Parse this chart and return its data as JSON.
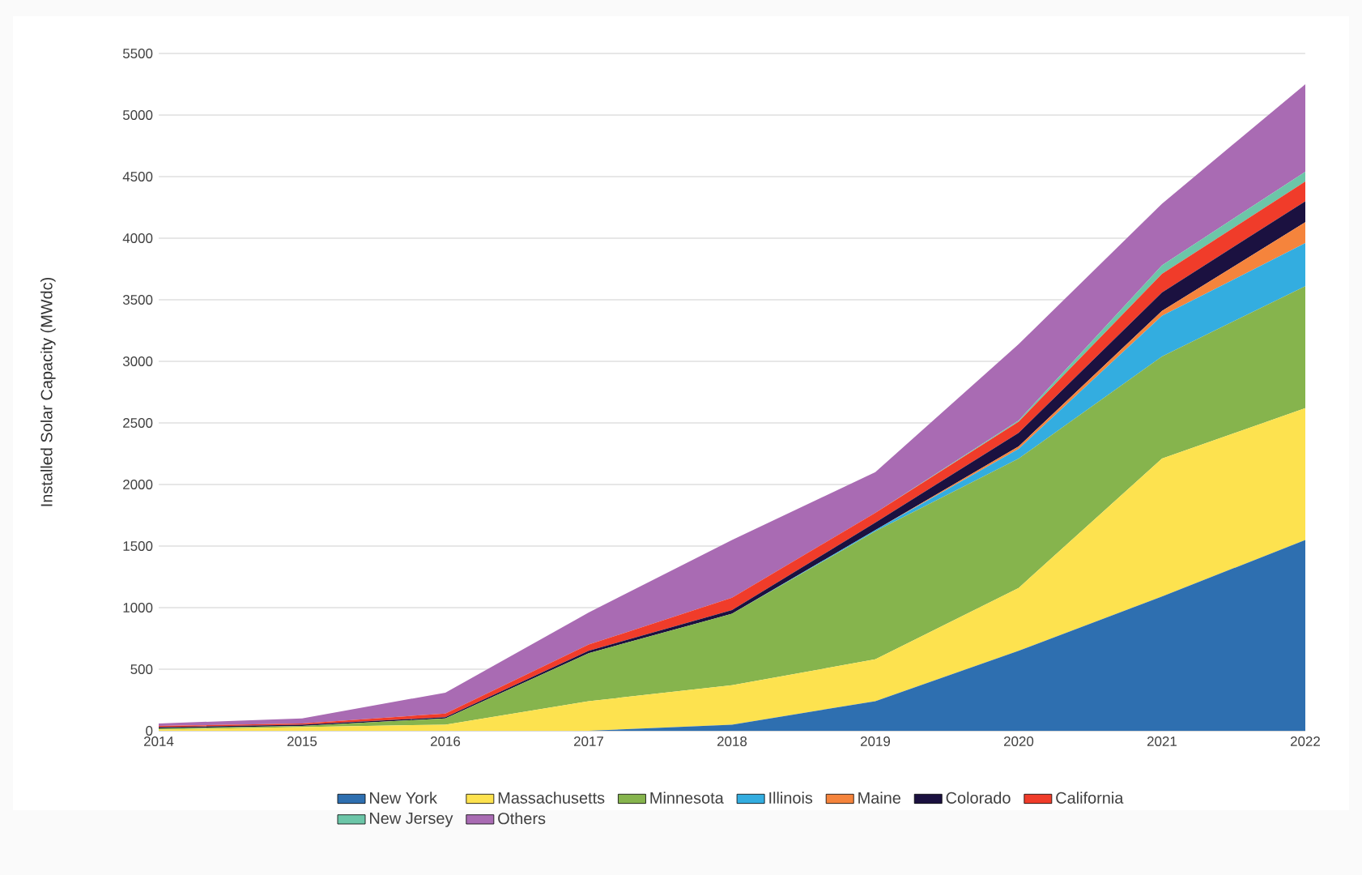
{
  "chart_data": {
    "type": "area",
    "stacked": true,
    "ylabel": "Installed Solar Capacity (MWdc)",
    "x": [
      2014,
      2015,
      2016,
      2017,
      2018,
      2019,
      2020,
      2021,
      2022
    ],
    "xlim": [
      2014,
      2022
    ],
    "xticks": [
      2014,
      2015,
      2016,
      2017,
      2018,
      2019,
      2020,
      2021,
      2022
    ],
    "ylim": [
      0,
      5500
    ],
    "yticks": [
      0,
      500,
      1000,
      1500,
      2000,
      2500,
      3000,
      3500,
      4000,
      4500,
      5000,
      5500
    ],
    "grid": "y",
    "legend": "bottom",
    "series": [
      {
        "name": "New York",
        "color": "#2e6fb0",
        "values": [
          0,
          0,
          0,
          0,
          50,
          240,
          650,
          1090,
          1550
        ]
      },
      {
        "name": "Massachusetts",
        "color": "#fde24f",
        "values": [
          10,
          30,
          50,
          240,
          320,
          340,
          510,
          1120,
          1070
        ]
      },
      {
        "name": "Minnesota",
        "color": "#86b44d",
        "values": [
          10,
          10,
          50,
          390,
          580,
          1040,
          1050,
          830,
          990
        ]
      },
      {
        "name": "Illinois",
        "color": "#33ade0",
        "values": [
          0,
          0,
          0,
          0,
          0,
          10,
          80,
          330,
          350
        ]
      },
      {
        "name": "Maine",
        "color": "#f5843c",
        "values": [
          0,
          0,
          0,
          0,
          0,
          0,
          20,
          40,
          170
        ]
      },
      {
        "name": "Colorado",
        "color": "#1b1140",
        "values": [
          10,
          10,
          10,
          20,
          30,
          60,
          110,
          150,
          170
        ]
      },
      {
        "name": "California",
        "color": "#f03c2a",
        "values": [
          10,
          10,
          30,
          50,
          100,
          80,
          90,
          150,
          160
        ]
      },
      {
        "name": "New Jersey",
        "color": "#6cc6a8",
        "values": [
          0,
          0,
          0,
          0,
          0,
          0,
          10,
          70,
          80
        ]
      },
      {
        "name": "Others",
        "color": "#a96bb3",
        "values": [
          20,
          40,
          170,
          260,
          470,
          330,
          620,
          500,
          710
        ]
      }
    ]
  }
}
